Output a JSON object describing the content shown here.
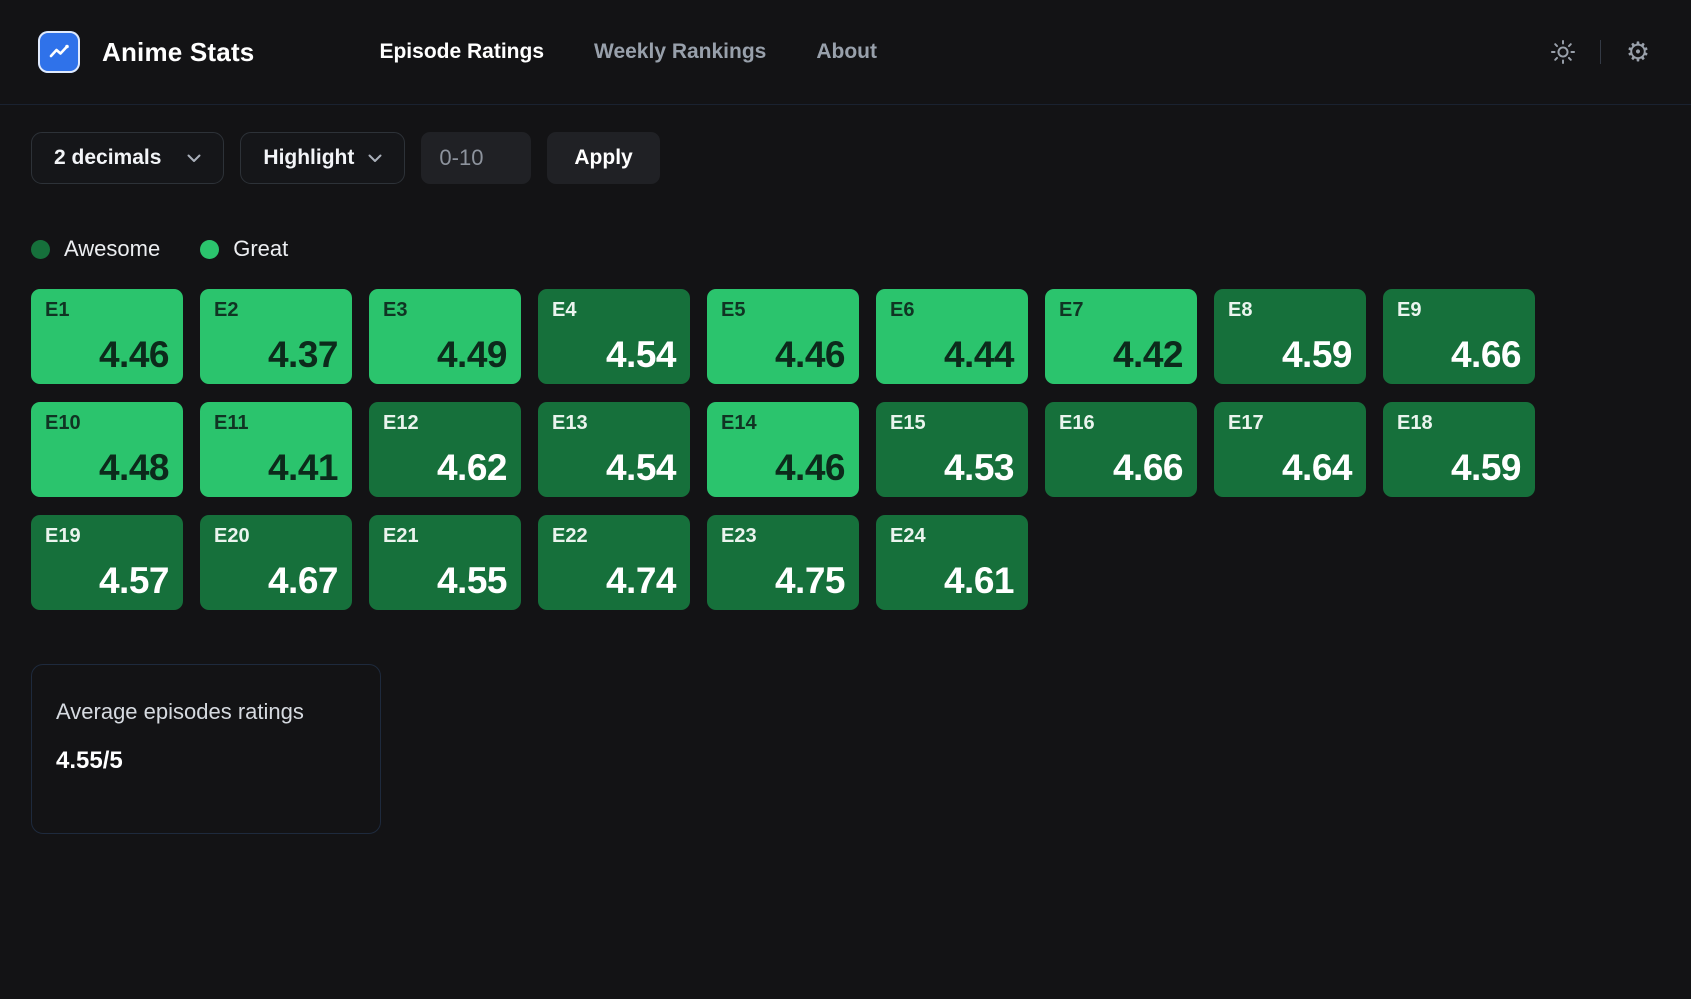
{
  "header": {
    "app_title": "Anime Stats",
    "nav": [
      {
        "label": "Episode Ratings",
        "active": true
      },
      {
        "label": "Weekly Rankings",
        "active": false
      },
      {
        "label": "About",
        "active": false
      }
    ]
  },
  "toolbar": {
    "decimals_select": "2 decimals",
    "highlight_select": "Highlight",
    "range_value": "0-10",
    "apply_label": "Apply"
  },
  "legend": [
    {
      "label": "Awesome",
      "color": "#16703b"
    },
    {
      "label": "Great",
      "color": "#2bc46d"
    }
  ],
  "episodes": [
    {
      "label": "E1",
      "rating": "4.46",
      "tier": "great"
    },
    {
      "label": "E2",
      "rating": "4.37",
      "tier": "great"
    },
    {
      "label": "E3",
      "rating": "4.49",
      "tier": "great"
    },
    {
      "label": "E4",
      "rating": "4.54",
      "tier": "awesome"
    },
    {
      "label": "E5",
      "rating": "4.46",
      "tier": "great"
    },
    {
      "label": "E6",
      "rating": "4.44",
      "tier": "great"
    },
    {
      "label": "E7",
      "rating": "4.42",
      "tier": "great"
    },
    {
      "label": "E8",
      "rating": "4.59",
      "tier": "awesome"
    },
    {
      "label": "E9",
      "rating": "4.66",
      "tier": "awesome"
    },
    {
      "label": "E10",
      "rating": "4.48",
      "tier": "great"
    },
    {
      "label": "E11",
      "rating": "4.41",
      "tier": "great"
    },
    {
      "label": "E12",
      "rating": "4.62",
      "tier": "awesome"
    },
    {
      "label": "E13",
      "rating": "4.54",
      "tier": "awesome"
    },
    {
      "label": "E14",
      "rating": "4.46",
      "tier": "great"
    },
    {
      "label": "E15",
      "rating": "4.53",
      "tier": "awesome"
    },
    {
      "label": "E16",
      "rating": "4.66",
      "tier": "awesome"
    },
    {
      "label": "E17",
      "rating": "4.64",
      "tier": "awesome"
    },
    {
      "label": "E18",
      "rating": "4.59",
      "tier": "awesome"
    },
    {
      "label": "E19",
      "rating": "4.57",
      "tier": "awesome"
    },
    {
      "label": "E20",
      "rating": "4.67",
      "tier": "awesome"
    },
    {
      "label": "E21",
      "rating": "4.55",
      "tier": "awesome"
    },
    {
      "label": "E22",
      "rating": "4.74",
      "tier": "awesome"
    },
    {
      "label": "E23",
      "rating": "4.75",
      "tier": "awesome"
    },
    {
      "label": "E24",
      "rating": "4.61",
      "tier": "awesome"
    }
  ],
  "summary": {
    "title": "Average episodes ratings",
    "value": "4.55/5"
  },
  "colors": {
    "great": "#2bc46d",
    "awesome": "#16703b",
    "accent_blue": "#2f72ea",
    "background": "#131315"
  }
}
